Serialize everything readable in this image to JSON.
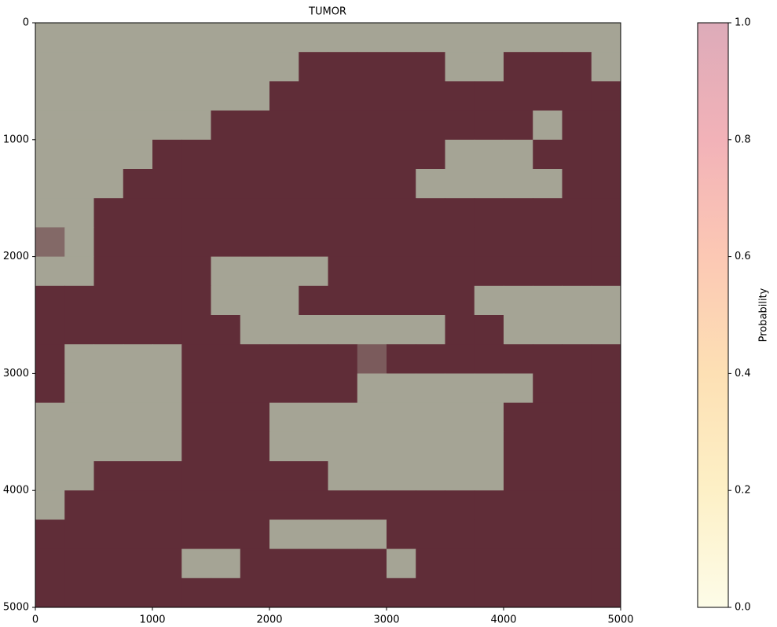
{
  "chart_data": {
    "type": "heatmap",
    "title": "TUMOR",
    "z": [
      [
        0.05,
        0.05,
        0.05,
        0.05,
        0.05,
        0.05,
        0.05,
        0.05,
        0.05,
        0.05,
        0.05,
        0.05,
        0.05,
        0.05,
        0.05,
        0.05,
        0.05,
        0.05,
        0.05,
        0.05
      ],
      [
        0.05,
        0.05,
        0.05,
        0.05,
        0.05,
        0.05,
        0.05,
        0.05,
        0.05,
        0.95,
        0.95,
        0.95,
        0.95,
        0.95,
        0.05,
        0.05,
        0.95,
        0.95,
        0.95,
        0.05
      ],
      [
        0.05,
        0.05,
        0.05,
        0.05,
        0.05,
        0.05,
        0.05,
        0.05,
        0.95,
        0.95,
        0.95,
        0.95,
        0.95,
        0.95,
        0.95,
        0.95,
        0.95,
        0.95,
        0.95,
        0.95
      ],
      [
        0.05,
        0.05,
        0.05,
        0.05,
        0.05,
        0.05,
        0.95,
        0.95,
        0.95,
        0.95,
        0.95,
        0.95,
        0.95,
        0.95,
        0.95,
        0.95,
        0.95,
        0.05,
        0.95,
        0.95
      ],
      [
        0.05,
        0.05,
        0.05,
        0.05,
        0.95,
        0.95,
        0.95,
        0.95,
        0.95,
        0.95,
        0.95,
        0.95,
        0.95,
        0.95,
        0.05,
        0.05,
        0.05,
        0.95,
        0.95,
        0.95
      ],
      [
        0.05,
        0.05,
        0.05,
        0.95,
        0.95,
        0.95,
        0.95,
        0.95,
        0.95,
        0.95,
        0.95,
        0.95,
        0.95,
        0.05,
        0.05,
        0.05,
        0.05,
        0.05,
        0.95,
        0.95
      ],
      [
        0.05,
        0.05,
        0.95,
        0.95,
        0.95,
        0.95,
        0.95,
        0.95,
        0.95,
        0.95,
        0.95,
        0.95,
        0.95,
        0.95,
        0.95,
        0.95,
        0.95,
        0.95,
        0.95,
        0.95
      ],
      [
        0.5,
        0.05,
        0.95,
        0.95,
        0.95,
        0.95,
        0.95,
        0.95,
        0.95,
        0.95,
        0.95,
        0.95,
        0.95,
        0.95,
        0.95,
        0.95,
        0.95,
        0.95,
        0.95,
        0.95
      ],
      [
        0.05,
        0.05,
        0.95,
        0.95,
        0.95,
        0.95,
        0.05,
        0.05,
        0.05,
        0.05,
        0.95,
        0.95,
        0.95,
        0.95,
        0.95,
        0.95,
        0.95,
        0.95,
        0.95,
        0.95
      ],
      [
        0.95,
        0.95,
        0.95,
        0.95,
        0.95,
        0.95,
        0.05,
        0.05,
        0.05,
        0.95,
        0.95,
        0.95,
        0.95,
        0.95,
        0.95,
        0.05,
        0.05,
        0.05,
        0.05,
        0.05
      ],
      [
        0.95,
        0.95,
        0.95,
        0.95,
        0.95,
        0.95,
        0.95,
        0.05,
        0.05,
        0.05,
        0.05,
        0.05,
        0.05,
        0.05,
        0.95,
        0.95,
        0.05,
        0.05,
        0.05,
        0.05
      ],
      [
        0.95,
        0.05,
        0.05,
        0.05,
        0.05,
        0.95,
        0.95,
        0.95,
        0.95,
        0.95,
        0.95,
        0.6,
        0.95,
        0.95,
        0.95,
        0.95,
        0.95,
        0.95,
        0.95,
        0.95
      ],
      [
        0.95,
        0.05,
        0.05,
        0.05,
        0.05,
        0.95,
        0.95,
        0.95,
        0.95,
        0.95,
        0.95,
        0.05,
        0.05,
        0.05,
        0.05,
        0.05,
        0.05,
        0.95,
        0.95,
        0.95
      ],
      [
        0.05,
        0.05,
        0.05,
        0.05,
        0.05,
        0.95,
        0.95,
        0.95,
        0.05,
        0.05,
        0.05,
        0.05,
        0.05,
        0.05,
        0.05,
        0.05,
        0.95,
        0.95,
        0.95,
        0.95
      ],
      [
        0.05,
        0.05,
        0.05,
        0.05,
        0.05,
        0.95,
        0.95,
        0.95,
        0.05,
        0.05,
        0.05,
        0.05,
        0.05,
        0.05,
        0.05,
        0.05,
        0.95,
        0.95,
        0.95,
        0.95
      ],
      [
        0.05,
        0.05,
        0.95,
        0.95,
        0.95,
        0.95,
        0.95,
        0.95,
        0.95,
        0.95,
        0.05,
        0.05,
        0.05,
        0.05,
        0.05,
        0.05,
        0.95,
        0.95,
        0.95,
        0.95
      ],
      [
        0.05,
        0.95,
        0.95,
        0.95,
        0.95,
        0.95,
        0.95,
        0.95,
        0.95,
        0.95,
        0.95,
        0.95,
        0.95,
        0.95,
        0.95,
        0.95,
        0.95,
        0.95,
        0.95,
        0.95
      ],
      [
        0.95,
        0.95,
        0.95,
        0.95,
        0.95,
        0.95,
        0.95,
        0.95,
        0.05,
        0.05,
        0.05,
        0.05,
        0.95,
        0.95,
        0.95,
        0.95,
        0.95,
        0.95,
        0.95,
        0.95
      ],
      [
        0.95,
        0.95,
        0.95,
        0.95,
        0.95,
        0.05,
        0.05,
        0.95,
        0.95,
        0.95,
        0.95,
        0.95,
        0.05,
        0.95,
        0.95,
        0.95,
        0.95,
        0.95,
        0.95,
        0.95
      ],
      [
        0.95,
        0.95,
        0.95,
        0.95,
        0.95,
        0.95,
        0.95,
        0.95,
        0.95,
        0.95,
        0.95,
        0.95,
        0.95,
        0.95,
        0.95,
        0.95,
        0.95,
        0.95,
        0.95,
        0.95
      ]
    ],
    "xlim": [
      0,
      5000
    ],
    "ylim": [
      5000,
      0
    ],
    "xticks": [
      0,
      1000,
      2000,
      3000,
      4000,
      5000
    ],
    "yticks": [
      0,
      1000,
      2000,
      3000,
      4000,
      5000
    ],
    "colorbar": {
      "label": "Probability",
      "lim": [
        0,
        1
      ],
      "ticks": [
        {
          "value": 0,
          "label": "0.0"
        },
        {
          "value": 0.2,
          "label": "0.2"
        },
        {
          "value": 0.4,
          "label": "0.4"
        },
        {
          "value": 0.6,
          "label": "0.6"
        },
        {
          "value": 0.8,
          "label": "0.8"
        },
        {
          "value": 1,
          "label": "1.0"
        }
      ],
      "colors": [
        "#fdfce8",
        "#fdf0c6",
        "#fde0b4",
        "#fcc8b4",
        "#f2b2b8",
        "#ddabb9"
      ]
    }
  }
}
